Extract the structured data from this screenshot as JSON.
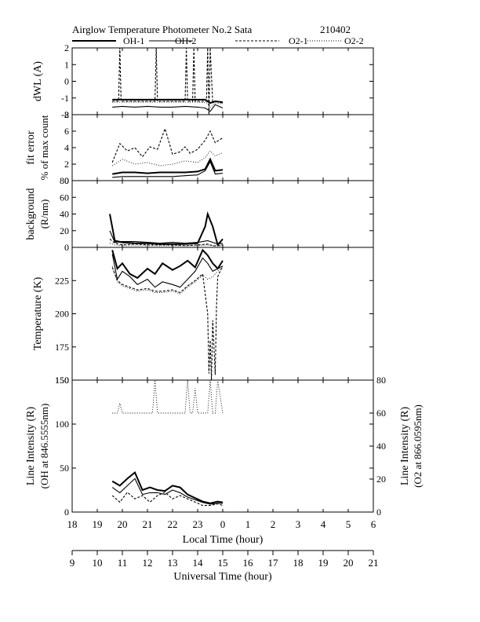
{
  "header": {
    "title": "Airglow Temperature Photometer No.2  Sata",
    "date": "210402"
  },
  "legend": [
    {
      "name": "OH-1",
      "style": "solid-thick"
    },
    {
      "name": "OH-2",
      "style": "solid-thin"
    },
    {
      "name": "O2-1",
      "style": "dashed"
    },
    {
      "name": "O2-2",
      "style": "dotted"
    }
  ],
  "chart_data": {
    "type": "line",
    "x_axes": {
      "local": {
        "label": "Local Time (hour)",
        "ticks": [
          "18",
          "19",
          "20",
          "21",
          "22",
          "23",
          "0",
          "1",
          "2",
          "3",
          "4",
          "5",
          "6"
        ]
      },
      "universal": {
        "label": "Universal Time (hour)",
        "ticks": [
          "9",
          "10",
          "11",
          "12",
          "13",
          "14",
          "15",
          "16",
          "17",
          "18",
          "19",
          "20",
          "21"
        ]
      },
      "xlim_ut": [
        9,
        21
      ]
    },
    "panels": [
      {
        "id": "dwl",
        "ylabel": [
          "dWL (A)"
        ],
        "ylim": [
          -2,
          2
        ],
        "yticks": [
          "-2",
          "-1",
          "0",
          "1",
          "2"
        ],
        "series": [
          {
            "name": "OH-1",
            "x": [
              10.6,
              11.0,
              11.5,
              12.0,
              12.5,
              13.0,
              13.5,
              14.0,
              14.3,
              14.5,
              14.7,
              15.0
            ],
            "y": [
              -1.1,
              -1.1,
              -1.1,
              -1.1,
              -1.1,
              -1.1,
              -1.1,
              -1.1,
              -1.1,
              -1.3,
              -1.2,
              -1.25
            ]
          },
          {
            "name": "OH-2",
            "x": [
              10.6,
              11.0,
              11.5,
              12.0,
              12.5,
              13.0,
              13.5,
              14.0,
              14.3,
              14.5,
              14.7,
              15.0
            ],
            "y": [
              -1.55,
              -1.5,
              -1.55,
              -1.5,
              -1.55,
              -1.55,
              -1.5,
              -1.55,
              -1.6,
              -1.8,
              -1.4,
              -1.6
            ]
          },
          {
            "name": "O2-1",
            "x": [
              10.6,
              10.85,
              10.9,
              10.95,
              11.5,
              12.3,
              12.35,
              12.4,
              13.0,
              13.5,
              13.55,
              13.6,
              13.8,
              13.85,
              13.9,
              14.35,
              14.4,
              14.45,
              14.5,
              14.6,
              14.7,
              15.0
            ],
            "y": [
              -1.2,
              -1.2,
              2.0,
              -1.2,
              -1.2,
              -1.2,
              2.0,
              -1.2,
              -1.2,
              -1.2,
              2.0,
              -1.2,
              -1.2,
              2.0,
              -1.2,
              -1.2,
              2.0,
              -2.0,
              2.0,
              -1.3,
              -1.2,
              -1.3
            ]
          },
          {
            "name": "O2-2",
            "x": [
              10.6,
              11.0,
              11.5,
              12.0,
              12.5,
              13.0,
              13.5,
              14.0,
              14.4,
              14.5,
              14.7,
              15.0
            ],
            "y": [
              -1.25,
              -1.25,
              -1.25,
              -1.25,
              -1.25,
              -1.25,
              -1.25,
              -1.25,
              -1.3,
              -1.6,
              -1.3,
              -1.35
            ]
          }
        ]
      },
      {
        "id": "fit",
        "ylabel": [
          "fit error",
          "% of max count"
        ],
        "ylim": [
          0,
          8
        ],
        "yticks": [
          "0",
          "2",
          "4",
          "6",
          "8"
        ],
        "series": [
          {
            "name": "OH-1",
            "x": [
              10.6,
              11.0,
              11.5,
              12.0,
              12.5,
              13.0,
              13.5,
              14.0,
              14.3,
              14.5,
              14.7,
              15.0
            ],
            "y": [
              0.8,
              1.0,
              1.0,
              0.9,
              1.0,
              1.0,
              1.0,
              1.1,
              1.4,
              2.6,
              1.2,
              1.3
            ]
          },
          {
            "name": "OH-2",
            "x": [
              10.6,
              11.0,
              11.5,
              12.0,
              12.5,
              13.0,
              13.5,
              14.0,
              14.3,
              14.5,
              14.7,
              15.0
            ],
            "y": [
              0.4,
              0.5,
              0.5,
              0.5,
              0.5,
              0.5,
              0.6,
              0.7,
              1.2,
              2.3,
              0.8,
              0.9
            ]
          },
          {
            "name": "O2-1",
            "x": [
              10.6,
              10.9,
              11.2,
              11.5,
              11.8,
              12.1,
              12.4,
              12.7,
              13.0,
              13.3,
              13.5,
              13.7,
              14.0,
              14.3,
              14.5,
              14.7,
              15.0
            ],
            "y": [
              2.2,
              4.5,
              3.6,
              4.0,
              2.9,
              4.1,
              3.8,
              6.3,
              3.2,
              3.5,
              4.1,
              3.3,
              3.8,
              4.9,
              6.0,
              4.6,
              5.2
            ]
          },
          {
            "name": "O2-2",
            "x": [
              10.6,
              11.0,
              11.5,
              12.0,
              12.5,
              13.0,
              13.5,
              14.0,
              14.3,
              14.5,
              14.7,
              15.0
            ],
            "y": [
              1.8,
              2.6,
              2.0,
              2.2,
              1.8,
              2.0,
              2.4,
              2.2,
              2.8,
              3.6,
              3.0,
              3.4
            ]
          }
        ]
      },
      {
        "id": "bg",
        "ylabel": [
          "background",
          "(R/nm)"
        ],
        "ylim": [
          0,
          80
        ],
        "yticks": [
          "0",
          "20",
          "40",
          "60",
          "80"
        ],
        "series": [
          {
            "name": "OH-1",
            "x": [
              10.5,
              10.7,
              11.0,
              11.5,
              12.0,
              12.5,
              13.0,
              13.5,
              14.0,
              14.3,
              14.4,
              14.6,
              14.8,
              15.0
            ],
            "y": [
              40,
              8,
              6,
              5,
              5,
              4,
              4,
              4,
              5,
              25,
              40,
              25,
              3,
              10
            ]
          },
          {
            "name": "OH-2",
            "x": [
              10.5,
              10.7,
              11.0,
              11.5,
              12.0,
              12.5,
              13.0,
              13.5,
              14.0,
              14.4,
              14.6,
              14.8,
              15.0
            ],
            "y": [
              20,
              6,
              7,
              7,
              6,
              5,
              6,
              5,
              6,
              8,
              6,
              4,
              5
            ]
          },
          {
            "name": "O2-1",
            "x": [
              10.5,
              10.7,
              11.0,
              11.5,
              12.0,
              12.5,
              13.0,
              13.5,
              14.0,
              14.4,
              14.6,
              14.8,
              15.0
            ],
            "y": [
              10,
              5,
              3,
              4,
              3,
              3,
              3,
              2,
              3,
              4,
              2,
              2,
              3
            ]
          },
          {
            "name": "O2-2",
            "x": [
              10.5,
              10.7,
              11.0,
              11.5,
              12.0,
              12.5,
              13.0,
              13.5,
              14.0,
              14.4,
              14.6,
              14.8,
              15.0
            ],
            "y": [
              5,
              3,
              2,
              2,
              2,
              2,
              2,
              2,
              2,
              3,
              2,
              2,
              2
            ]
          }
        ]
      },
      {
        "id": "temp",
        "ylabel": [
          "Temperature (K)"
        ],
        "ylim": [
          150,
          250
        ],
        "yticks": [
          "150",
          "175",
          "200",
          "225"
        ],
        "series": [
          {
            "name": "OH-1",
            "x": [
              10.6,
              10.8,
              11.0,
              11.3,
              11.6,
              12.0,
              12.3,
              12.6,
              13.0,
              13.3,
              13.6,
              13.9,
              14.2,
              14.4,
              14.6,
              14.8,
              15.0
            ],
            "y": [
              248,
              234,
              238,
              230,
              227,
              234,
              230,
              238,
              233,
              236,
              240,
              235,
              248,
              244,
              238,
              234,
              240
            ]
          },
          {
            "name": "OH-2",
            "x": [
              10.6,
              10.8,
              11.0,
              11.3,
              11.6,
              12.0,
              12.3,
              12.6,
              13.0,
              13.3,
              13.6,
              13.9,
              14.2,
              14.4,
              14.6,
              14.8,
              15.0
            ],
            "y": [
              245,
              226,
              232,
              228,
              222,
              226,
              220,
              224,
              222,
              220,
              226,
              232,
              242,
              238,
              232,
              234,
              236
            ]
          },
          {
            "name": "O2-1",
            "x": [
              10.6,
              10.8,
              11.0,
              11.3,
              11.6,
              12.0,
              12.3,
              12.6,
              13.0,
              13.3,
              13.6,
              13.9,
              14.2,
              14.4,
              14.45,
              14.5,
              14.55,
              14.6,
              14.7,
              14.75,
              14.8,
              15.0
            ],
            "y": [
              235,
              225,
              222,
              220,
              218,
              219,
              217,
              217,
              218,
              216,
              221,
              225,
              230,
              200,
              155,
              180,
              150,
              195,
              154,
              205,
              228,
              236
            ]
          },
          {
            "name": "O2-2",
            "x": [
              10.6,
              10.8,
              11.0,
              11.3,
              11.6,
              12.0,
              12.3,
              12.6,
              13.0,
              13.3,
              13.6,
              13.9,
              14.2,
              14.4,
              14.6,
              14.8,
              15.0
            ],
            "y": [
              236,
              224,
              221,
              219,
              217,
              218,
              216,
              216,
              217,
              215,
              220,
              224,
              229,
              226,
              228,
              232,
              235
            ]
          }
        ]
      },
      {
        "id": "intensity",
        "ylabel": [
          "Line Intensity (R)",
          "(OH at 846.5555nm)"
        ],
        "ylabel_right": [
          "Line Intensity (R)",
          "(O2 at 866.0595nm)"
        ],
        "ylim": [
          0,
          150
        ],
        "yticks": [
          "0",
          "50",
          "100",
          "150"
        ],
        "ylim_right": [
          0,
          80
        ],
        "yticks_right": [
          "0",
          "20",
          "40",
          "60",
          "80"
        ],
        "series": [
          {
            "name": "OH-1",
            "axis": "left",
            "x": [
              10.6,
              10.9,
              11.2,
              11.5,
              11.8,
              12.1,
              12.4,
              12.7,
              13.0,
              13.3,
              13.6,
              13.9,
              14.2,
              14.5,
              14.8,
              15.0
            ],
            "y": [
              35,
              30,
              38,
              45,
              25,
              28,
              25,
              24,
              30,
              28,
              20,
              16,
              12,
              10,
              12,
              11
            ]
          },
          {
            "name": "OH-2",
            "axis": "left",
            "x": [
              10.6,
              10.9,
              11.2,
              11.5,
              11.8,
              12.1,
              12.4,
              12.7,
              13.0,
              13.3,
              13.6,
              13.9,
              14.2,
              14.5,
              14.8,
              15.0
            ],
            "y": [
              28,
              22,
              30,
              38,
              20,
              22,
              22,
              20,
              25,
              22,
              17,
              14,
              11,
              9,
              10,
              10
            ]
          },
          {
            "name": "O2-1",
            "axis": "right",
            "x": [
              10.6,
              10.9,
              11.2,
              11.5,
              11.8,
              12.1,
              12.4,
              12.7,
              13.0,
              13.3,
              13.6,
              13.9,
              14.2,
              14.5,
              14.8,
              15.0
            ],
            "y": [
              10,
              6,
              12,
              8,
              10,
              6,
              10,
              12,
              8,
              10,
              8,
              6,
              4,
              4,
              5,
              4
            ]
          },
          {
            "name": "O2-2",
            "axis": "right",
            "x": [
              10.6,
              10.8,
              10.9,
              11.0,
              11.5,
              12.0,
              12.2,
              12.3,
              12.4,
              12.6,
              13.0,
              13.4,
              13.5,
              13.6,
              13.7,
              13.8,
              13.9,
              14.0,
              14.2,
              14.4,
              14.5,
              14.6,
              14.7,
              14.8,
              15.0
            ],
            "y": [
              60,
              60,
              66,
              60,
              60,
              60,
              60,
              80,
              60,
              60,
              60,
              60,
              60,
              80,
              60,
              60,
              75,
              60,
              60,
              60,
              80,
              60,
              60,
              80,
              60
            ]
          }
        ]
      }
    ]
  }
}
